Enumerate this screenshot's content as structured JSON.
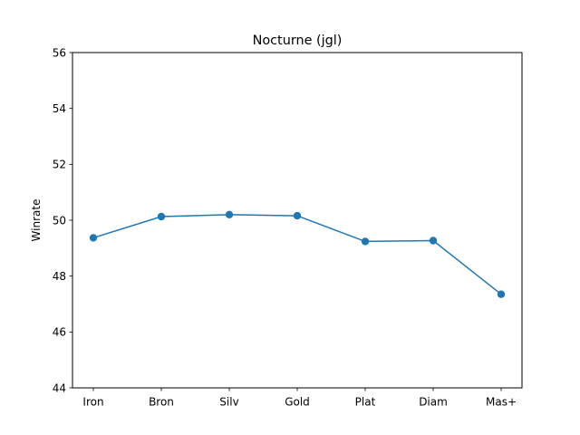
{
  "chart_data": {
    "type": "line",
    "title": "Nocturne (jgl)",
    "xlabel": "",
    "ylabel": "Winrate",
    "categories": [
      "Iron",
      "Bron",
      "Silv",
      "Gold",
      "Plat",
      "Diam",
      "Mas+"
    ],
    "series": [
      {
        "values": [
          49.37,
          50.13,
          50.2,
          50.16,
          49.24,
          49.27,
          47.35
        ],
        "color": "#1f77b4",
        "marker": "circle"
      }
    ],
    "ylim": [
      44,
      56
    ],
    "yticks": [
      44,
      46,
      48,
      50,
      52,
      54,
      56
    ],
    "grid": false,
    "legend": "none"
  }
}
